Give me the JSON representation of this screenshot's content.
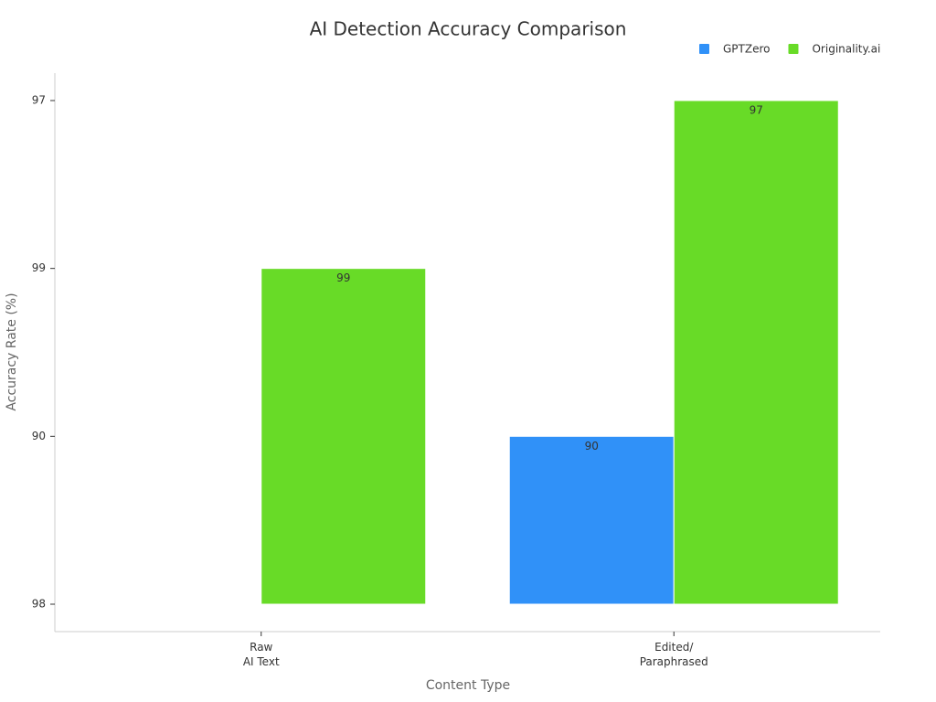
{
  "chart_data": {
    "type": "bar",
    "title": "AI Detection Accuracy Comparison",
    "x_label": "Content Type",
    "y_label": "Accuracy Rate (%)",
    "categories": [
      "Raw\nAI Text",
      "Edited/\nParaphrased"
    ],
    "y_categories": [
      98,
      90,
      99,
      97
    ],
    "series": [
      {
        "name": "GPTZero",
        "color": "#3091f8",
        "values": [
          null,
          90
        ]
      },
      {
        "name": "Originality.ai",
        "color": "#68db27",
        "values": [
          99,
          97
        ]
      }
    ],
    "legend": "top-right"
  }
}
